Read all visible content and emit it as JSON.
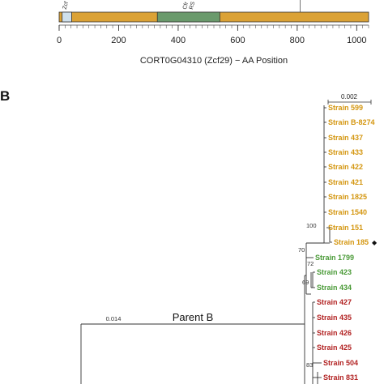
{
  "domain_map": {
    "axis_label": "CORT0G04310 (Zcf29) − AA  Position",
    "ticks": [
      "0",
      "200",
      "400",
      "600",
      "800",
      "1000"
    ],
    "range": [
      0,
      1040
    ],
    "domains": [
      {
        "label": "Zcf",
        "start": 10,
        "end": 42,
        "color": "#cfe0ec"
      },
      {
        "label": "Cfr",
        "label2": "RS",
        "start": 330,
        "end": 540,
        "color": "#6a9a6c"
      }
    ],
    "marker_position": 810,
    "bar_color": "#dba236"
  },
  "panel_label": "B",
  "tree": {
    "scale_bar": "0.002",
    "parent_label": "Parent B",
    "branch_length_label": "0.014",
    "bootstrap": {
      "b100": "100",
      "b70": "70",
      "b72": "72",
      "b69": "69",
      "b83": "83"
    },
    "diamond_symbol": "◆",
    "colors": {
      "orange": "#d4960f",
      "green": "#4a9a37",
      "red": "#b22222"
    },
    "strains": [
      {
        "label": "Strain 599",
        "clade": "orange"
      },
      {
        "label": "Strain B-8274",
        "clade": "orange"
      },
      {
        "label": "Strain 437",
        "clade": "orange"
      },
      {
        "label": "Strain 433",
        "clade": "orange"
      },
      {
        "label": "Strain 422",
        "clade": "orange"
      },
      {
        "label": "Strain 421",
        "clade": "orange"
      },
      {
        "label": "Strain 1825",
        "clade": "orange"
      },
      {
        "label": "Strain 1540",
        "clade": "orange"
      },
      {
        "label": "Strain 151",
        "clade": "orange"
      },
      {
        "label": "Strain 185",
        "clade": "orange"
      },
      {
        "label": "Strain 1799",
        "clade": "green"
      },
      {
        "label": "Strain 423",
        "clade": "green"
      },
      {
        "label": "Strain 434",
        "clade": "green"
      },
      {
        "label": "Strain 427",
        "clade": "red"
      },
      {
        "label": "Strain 435",
        "clade": "red"
      },
      {
        "label": "Strain 426",
        "clade": "red"
      },
      {
        "label": "Strain 425",
        "clade": "red"
      },
      {
        "label": "Strain 504",
        "clade": "red"
      },
      {
        "label": "Strain 831",
        "clade": "red"
      }
    ]
  }
}
